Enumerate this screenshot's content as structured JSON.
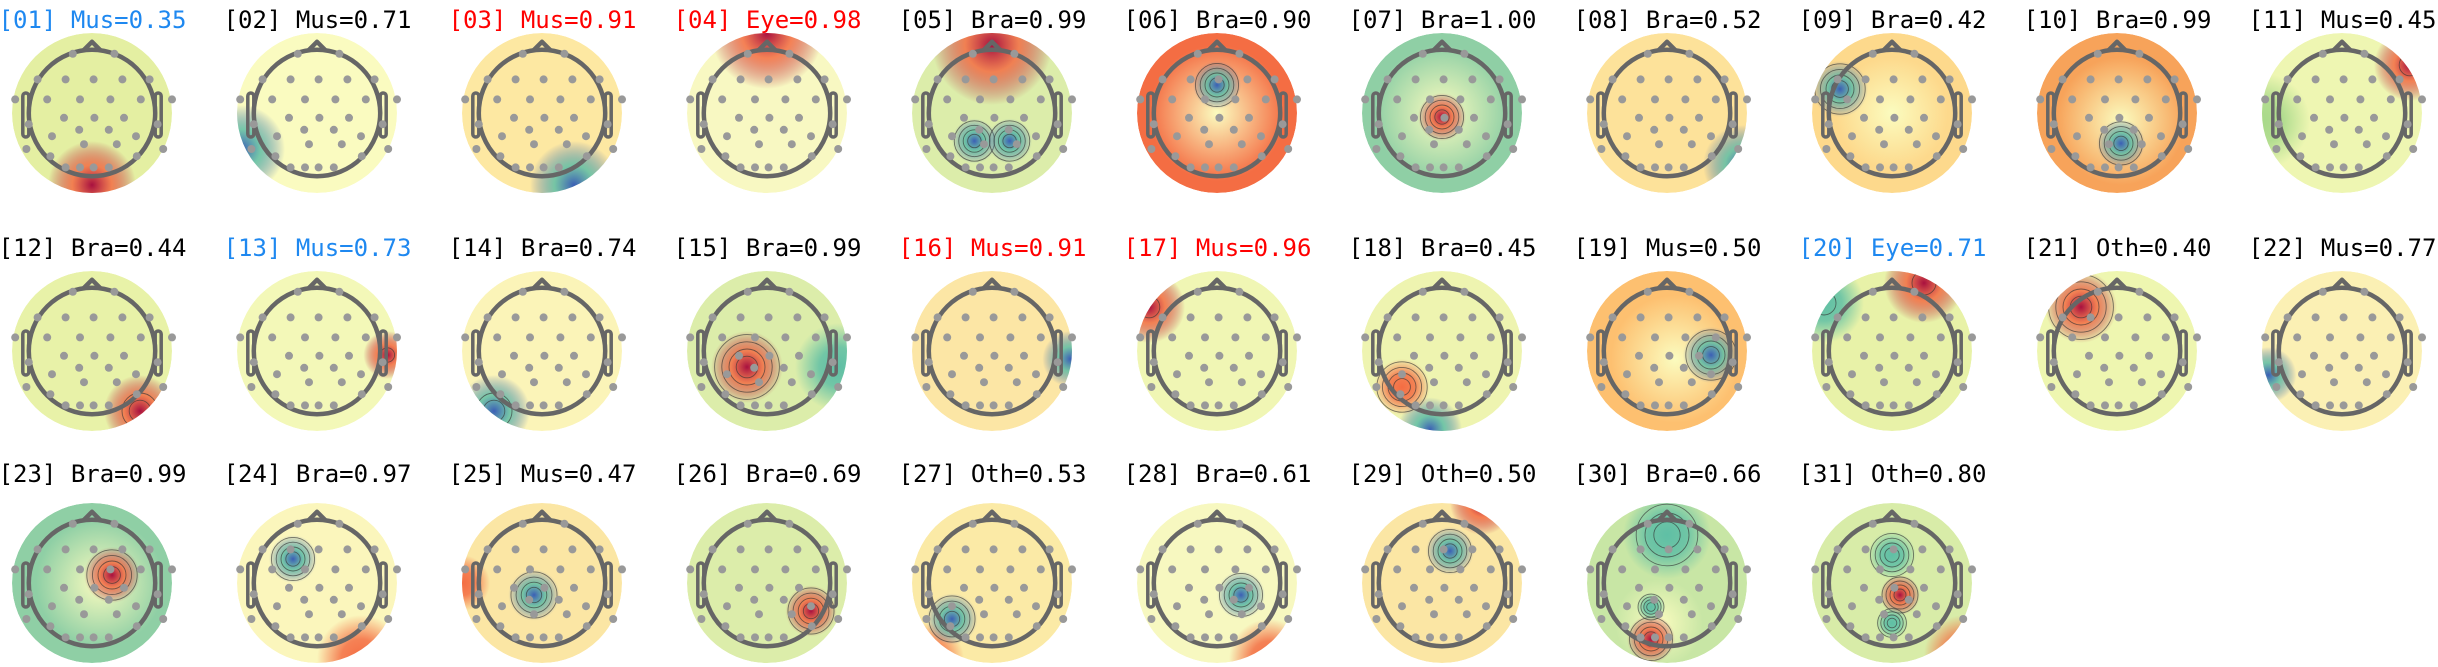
{
  "chart_data": {
    "type": "heatmap",
    "colors": {
      "default_title": "#000000",
      "blue_title": "#1e88f0",
      "red_title": "#ff0000",
      "colormap": [
        "#3b5fb5",
        "#5fbfa5",
        "#a8d98a",
        "#fbfcbf",
        "#fdd280",
        "#f46d43",
        "#a8103f"
      ],
      "head_outline": "#666666",
      "electrode": "#999999"
    },
    "components": [
      {
        "title": "[01] Mus=0.35",
        "title_color": "#1e88f0"
      },
      {
        "title": "[02] Mus=0.71",
        "title_color": "#000000"
      },
      {
        "title": "[03] Mus=0.91",
        "title_color": "#ff0000"
      },
      {
        "title": "[04] Eye=0.98",
        "title_color": "#ff0000"
      },
      {
        "title": "[05] Bra=0.99",
        "title_color": "#000000"
      },
      {
        "title": "[06] Bra=0.90",
        "title_color": "#000000"
      },
      {
        "title": "[07] Bra=1.00",
        "title_color": "#000000"
      },
      {
        "title": "[08] Bra=0.52",
        "title_color": "#000000"
      },
      {
        "title": "[09] Bra=0.42",
        "title_color": "#000000"
      },
      {
        "title": "[10] Bra=0.99",
        "title_color": "#000000"
      },
      {
        "title": "[11] Mus=0.45",
        "title_color": "#000000"
      },
      {
        "title": "[12] Bra=0.44",
        "title_color": "#000000"
      },
      {
        "title": "[13] Mus=0.73",
        "title_color": "#1e88f0"
      },
      {
        "title": "[14] Bra=0.74",
        "title_color": "#000000"
      },
      {
        "title": "[15] Bra=0.99",
        "title_color": "#000000"
      },
      {
        "title": "[16] Mus=0.91",
        "title_color": "#ff0000"
      },
      {
        "title": "[17] Mus=0.96",
        "title_color": "#ff0000"
      },
      {
        "title": "[18] Bra=0.45",
        "title_color": "#000000"
      },
      {
        "title": "[19] Mus=0.50",
        "title_color": "#000000"
      },
      {
        "title": "[20] Eye=0.71",
        "title_color": "#1e88f0"
      },
      {
        "title": "[21] Oth=0.40",
        "title_color": "#000000"
      },
      {
        "title": "[22] Mus=0.77",
        "title_color": "#000000"
      },
      {
        "title": "[23] Bra=0.99",
        "title_color": "#000000"
      },
      {
        "title": "[24] Bra=0.97",
        "title_color": "#000000"
      },
      {
        "title": "[25] Mus=0.47",
        "title_color": "#000000"
      },
      {
        "title": "[26] Bra=0.69",
        "title_color": "#000000"
      },
      {
        "title": "[27] Oth=0.53",
        "title_color": "#000000"
      },
      {
        "title": "[28] Bra=0.61",
        "title_color": "#000000"
      },
      {
        "title": "[29] Oth=0.50",
        "title_color": "#000000"
      },
      {
        "title": "[30] Bra=0.66",
        "title_color": "#000000"
      },
      {
        "title": "[31] Oth=0.80",
        "title_color": "#000000"
      }
    ]
  }
}
